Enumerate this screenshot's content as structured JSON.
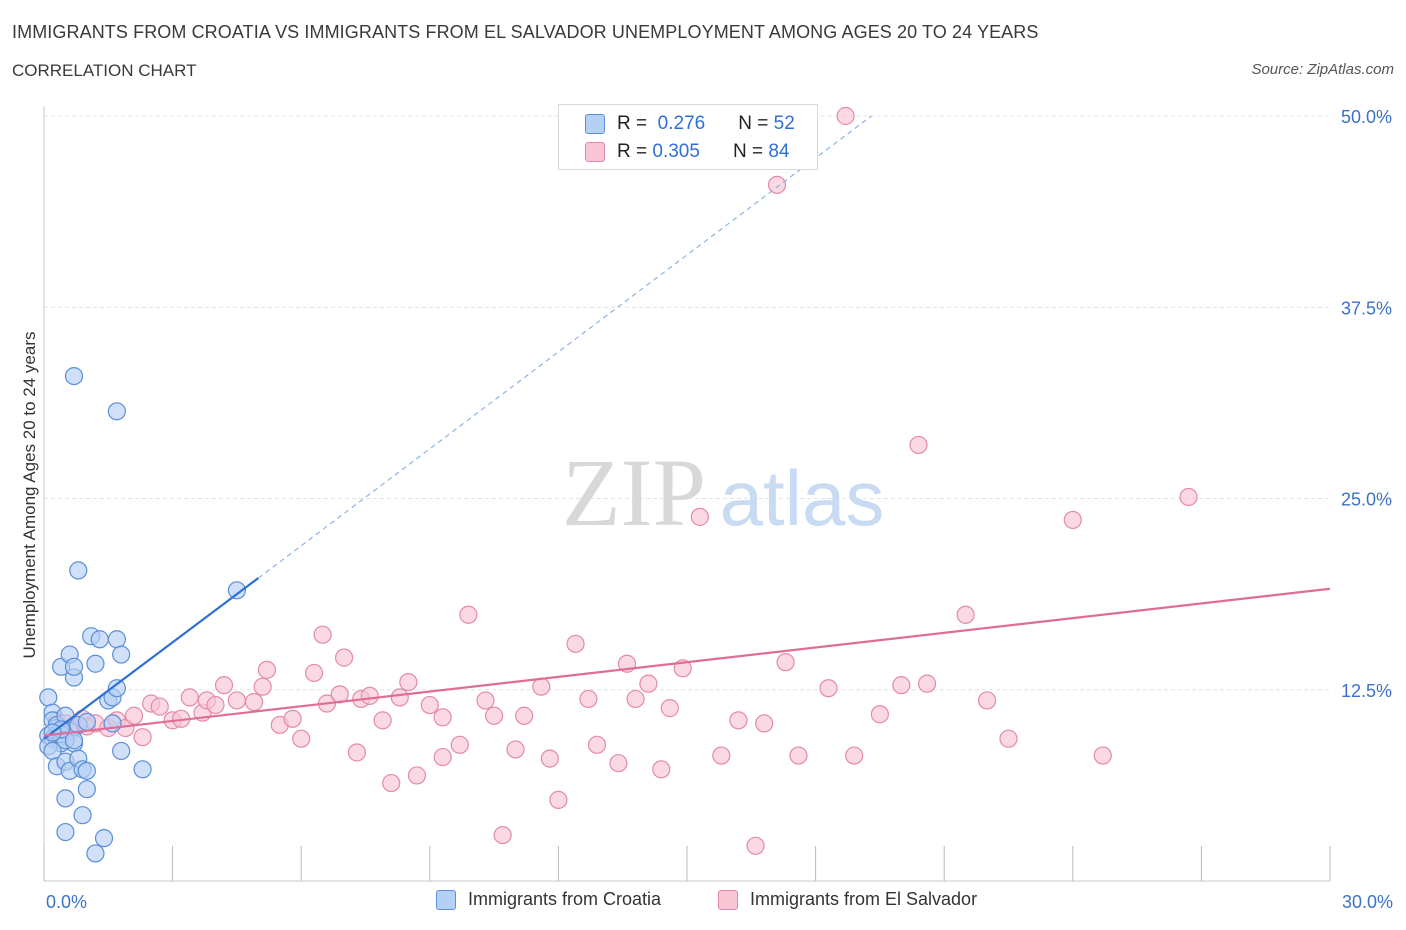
{
  "header": {
    "title": "IMMIGRANTS FROM CROATIA VS IMMIGRANTS FROM EL SALVADOR UNEMPLOYMENT AMONG AGES 20 TO 24 YEARS",
    "subtitle": "CORRELATION CHART",
    "source": "Source: ZipAtlas.com"
  },
  "legend": {
    "croatia": {
      "r_label": "R =",
      "r_value": "0.276",
      "n_label": "N =",
      "n_value": "52"
    },
    "elsalvador": {
      "r_label": "R =",
      "r_value": "0.305",
      "n_label": "N =",
      "n_value": "84"
    }
  },
  "watermark": {
    "zip": "ZIP",
    "atlas": "atlas"
  },
  "colors": {
    "croatia_fill": "#b5d0f5",
    "croatia_stroke": "#5b8fd8",
    "croatia_line": "#2f6fd6",
    "elsalvador_fill": "#f9c4d4",
    "elsalvador_stroke": "#e48aa8",
    "elsalvador_line": "#e06d97",
    "axis_label": "#3b72c8",
    "grid": "#e4e4e4"
  },
  "chart_data": {
    "type": "scatter",
    "title": "IMMIGRANTS FROM CROATIA VS IMMIGRANTS FROM EL SALVADOR UNEMPLOYMENT AMONG AGES 20 TO 24 YEARS",
    "xlabel": "",
    "ylabel": "Unemployment Among Ages 20 to 24 years",
    "xlim": [
      0,
      30
    ],
    "ylim": [
      0,
      50
    ],
    "x_tick_labels": [
      "0.0%",
      "30.0%"
    ],
    "y_ticks": [
      12.5,
      25.0,
      37.5,
      50.0
    ],
    "y_tick_labels": [
      "12.5%",
      "25.0%",
      "37.5%",
      "50.0%"
    ],
    "grid": true,
    "series": [
      {
        "name": "Immigrants from Croatia",
        "color": "#5b8fd8",
        "r": 0.276,
        "n": 52,
        "trend": {
          "x_start": 0.0,
          "y_start": 9.3,
          "x_end": 5.0,
          "y_end": 19.8,
          "dashed_x_end": 19.3,
          "dashed_y_end": 50.0
        },
        "points": [
          [
            0.1,
            12.0
          ],
          [
            0.2,
            11.0
          ],
          [
            0.2,
            10.5
          ],
          [
            0.3,
            10.0
          ],
          [
            0.1,
            9.5
          ],
          [
            0.2,
            9.3
          ],
          [
            0.3,
            9.2
          ],
          [
            0.4,
            9.0
          ],
          [
            0.1,
            8.8
          ],
          [
            0.2,
            8.5
          ],
          [
            0.3,
            10.2
          ],
          [
            0.5,
            10.8
          ],
          [
            0.6,
            9.8
          ],
          [
            0.7,
            9.0
          ],
          [
            0.4,
            9.6
          ],
          [
            0.5,
            9.2
          ],
          [
            0.3,
            7.5
          ],
          [
            0.5,
            7.8
          ],
          [
            0.6,
            7.2
          ],
          [
            0.8,
            8.0
          ],
          [
            0.9,
            7.3
          ],
          [
            0.4,
            9.9
          ],
          [
            0.8,
            10.2
          ],
          [
            1.0,
            10.4
          ],
          [
            1.0,
            6.0
          ],
          [
            0.9,
            4.3
          ],
          [
            0.5,
            5.4
          ],
          [
            0.5,
            3.2
          ],
          [
            1.4,
            2.8
          ],
          [
            1.2,
            1.8
          ],
          [
            0.4,
            14.0
          ],
          [
            0.6,
            14.8
          ],
          [
            0.7,
            13.3
          ],
          [
            0.7,
            14.0
          ],
          [
            1.1,
            16.0
          ],
          [
            1.3,
            15.8
          ],
          [
            1.7,
            15.8
          ],
          [
            1.8,
            14.8
          ],
          [
            1.2,
            14.2
          ],
          [
            1.5,
            11.8
          ],
          [
            1.6,
            12.0
          ],
          [
            1.6,
            10.3
          ],
          [
            1.7,
            12.6
          ],
          [
            1.8,
            8.5
          ],
          [
            2.3,
            7.3
          ],
          [
            0.8,
            20.3
          ],
          [
            0.7,
            33.0
          ],
          [
            1.7,
            30.7
          ],
          [
            4.5,
            19.0
          ],
          [
            0.2,
            9.7
          ],
          [
            0.7,
            9.2
          ],
          [
            1.0,
            7.2
          ]
        ]
      },
      {
        "name": "Immigrants from El Salvador",
        "color": "#e48aa8",
        "r": 0.305,
        "n": 84,
        "trend": {
          "x_start": 0.0,
          "y_start": 9.5,
          "x_end": 30.0,
          "y_end": 19.1
        },
        "points": [
          [
            0.3,
            10.5
          ],
          [
            0.5,
            10.3
          ],
          [
            0.7,
            10.0
          ],
          [
            0.9,
            10.6
          ],
          [
            1.0,
            10.1
          ],
          [
            1.2,
            10.3
          ],
          [
            1.5,
            10.0
          ],
          [
            1.7,
            10.5
          ],
          [
            1.9,
            10.0
          ],
          [
            2.1,
            10.8
          ],
          [
            2.3,
            9.4
          ],
          [
            2.5,
            11.6
          ],
          [
            2.7,
            11.4
          ],
          [
            3.0,
            10.5
          ],
          [
            3.2,
            10.6
          ],
          [
            3.4,
            12.0
          ],
          [
            3.7,
            11.0
          ],
          [
            3.8,
            11.8
          ],
          [
            4.0,
            11.5
          ],
          [
            4.2,
            12.8
          ],
          [
            4.5,
            11.8
          ],
          [
            4.9,
            11.7
          ],
          [
            5.1,
            12.7
          ],
          [
            5.2,
            13.8
          ],
          [
            5.5,
            10.2
          ],
          [
            5.8,
            10.6
          ],
          [
            6.0,
            9.3
          ],
          [
            6.3,
            13.6
          ],
          [
            6.5,
            16.1
          ],
          [
            6.6,
            11.6
          ],
          [
            6.9,
            12.2
          ],
          [
            7.0,
            14.6
          ],
          [
            7.3,
            8.4
          ],
          [
            7.4,
            11.9
          ],
          [
            7.6,
            12.1
          ],
          [
            7.9,
            10.5
          ],
          [
            8.1,
            6.4
          ],
          [
            8.3,
            12.0
          ],
          [
            8.5,
            13.0
          ],
          [
            8.7,
            6.9
          ],
          [
            9.0,
            11.5
          ],
          [
            9.3,
            8.1
          ],
          [
            9.3,
            10.7
          ],
          [
            9.7,
            8.9
          ],
          [
            9.9,
            17.4
          ],
          [
            10.3,
            11.8
          ],
          [
            10.5,
            10.8
          ],
          [
            10.7,
            3.0
          ],
          [
            11.0,
            8.6
          ],
          [
            11.2,
            10.8
          ],
          [
            11.6,
            12.7
          ],
          [
            11.8,
            8.0
          ],
          [
            12.0,
            5.3
          ],
          [
            12.4,
            15.5
          ],
          [
            12.7,
            11.9
          ],
          [
            12.9,
            8.9
          ],
          [
            13.4,
            7.7
          ],
          [
            13.6,
            14.2
          ],
          [
            13.8,
            11.9
          ],
          [
            14.1,
            12.9
          ],
          [
            14.4,
            7.3
          ],
          [
            14.6,
            11.3
          ],
          [
            14.9,
            13.9
          ],
          [
            15.3,
            23.8
          ],
          [
            15.8,
            8.2
          ],
          [
            16.2,
            10.5
          ],
          [
            16.6,
            2.3
          ],
          [
            16.8,
            10.3
          ],
          [
            17.1,
            45.5
          ],
          [
            17.3,
            14.3
          ],
          [
            17.6,
            8.2
          ],
          [
            18.3,
            12.6
          ],
          [
            18.7,
            50.0
          ],
          [
            18.9,
            8.2
          ],
          [
            20.0,
            12.8
          ],
          [
            20.4,
            28.5
          ],
          [
            20.6,
            12.9
          ],
          [
            21.5,
            17.4
          ],
          [
            22.0,
            11.8
          ],
          [
            22.5,
            9.3
          ],
          [
            24.0,
            23.6
          ],
          [
            24.7,
            8.2
          ],
          [
            26.7,
            25.1
          ],
          [
            19.5,
            10.9
          ]
        ]
      }
    ]
  },
  "bottom_legend": {
    "croatia_label": "Immigrants from Croatia",
    "elsalvador_label": "Immigrants from El Salvador"
  }
}
